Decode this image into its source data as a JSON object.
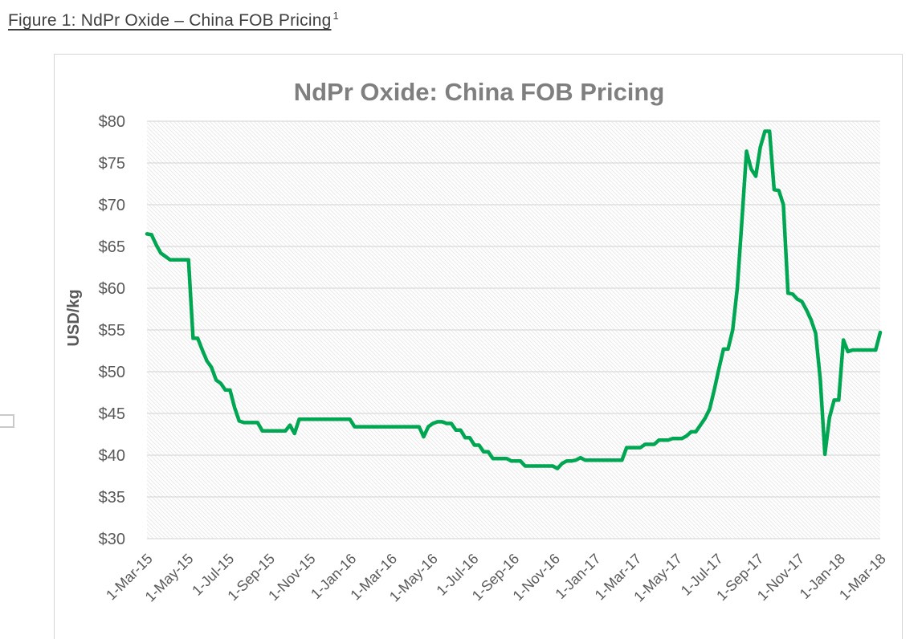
{
  "caption": {
    "text": "Figure 1: NdPr Oxide – China FOB Pricing",
    "superscript": "1"
  },
  "chart_data": {
    "type": "line",
    "title": "NdPr Oxide: China FOB Pricing",
    "xlabel": "",
    "ylabel": "USD/kg",
    "ylim": [
      30,
      80
    ],
    "ytick_step": 5,
    "ytick_labels": [
      "$30",
      "$35",
      "$40",
      "$45",
      "$50",
      "$55",
      "$60",
      "$65",
      "$70",
      "$75",
      "$80"
    ],
    "xtick_labels": [
      "1-Mar-15",
      "1-May-15",
      "1-Jul-15",
      "1-Sep-15",
      "1-Nov-15",
      "1-Jan-16",
      "1-Mar-16",
      "1-May-16",
      "1-Jul-16",
      "1-Sep-16",
      "1-Nov-16",
      "1-Jan-17",
      "1-Mar-17",
      "1-May-17",
      "1-Jul-17",
      "1-Sep-17",
      "1-Nov-17",
      "1-Jan-18",
      "1-Mar-18"
    ],
    "grid": "horizontal",
    "legend": "none",
    "plot_background": "diagonal-hatch",
    "colors": {
      "line": "#00A651",
      "title": "#7F7F7F",
      "axis_text": "#595959",
      "gridline": "#D9D9D9",
      "hatch": "#E7E7E7",
      "panel_border": "#D6D6D6"
    },
    "series": [
      {
        "name": "NdPr Oxide China FOB price (USD/kg)",
        "sampling": "weekly, 1-Mar-15 to early Mar-18",
        "values": [
          66.5,
          66.4,
          65.2,
          64.2,
          63.8,
          63.4,
          63.4,
          63.4,
          63.4,
          63.4,
          54.0,
          54.0,
          52.6,
          51.3,
          50.5,
          49.0,
          48.6,
          47.8,
          47.8,
          45.7,
          44.1,
          43.9,
          43.9,
          43.9,
          43.9,
          42.9,
          42.9,
          42.9,
          42.9,
          42.9,
          42.9,
          43.6,
          42.6,
          44.3,
          44.3,
          44.3,
          44.3,
          44.3,
          44.3,
          44.3,
          44.3,
          44.3,
          44.3,
          44.3,
          44.3,
          43.4,
          43.4,
          43.4,
          43.4,
          43.4,
          43.4,
          43.4,
          43.4,
          43.4,
          43.4,
          43.4,
          43.4,
          43.4,
          43.4,
          43.4,
          42.2,
          43.4,
          43.8,
          44.0,
          44.0,
          43.8,
          43.8,
          43.0,
          43.0,
          42.1,
          42.1,
          41.2,
          41.2,
          40.4,
          40.4,
          39.6,
          39.6,
          39.6,
          39.6,
          39.3,
          39.3,
          39.3,
          38.7,
          38.7,
          38.7,
          38.7,
          38.7,
          38.7,
          38.7,
          38.4,
          39.0,
          39.3,
          39.3,
          39.4,
          39.7,
          39.4,
          39.4,
          39.4,
          39.4,
          39.4,
          39.4,
          39.4,
          39.4,
          39.4,
          40.9,
          40.9,
          40.9,
          40.9,
          41.3,
          41.3,
          41.3,
          41.8,
          41.8,
          41.8,
          42.0,
          42.0,
          42.0,
          42.3,
          42.8,
          42.8,
          43.6,
          44.4,
          45.5,
          47.8,
          50.3,
          52.7,
          52.7,
          55.0,
          60.0,
          68.0,
          76.4,
          74.3,
          73.4,
          76.9,
          78.8,
          78.8,
          71.8,
          71.7,
          70.0,
          59.4,
          59.3,
          58.7,
          58.4,
          57.4,
          56.2,
          54.6,
          49.0,
          40.1,
          44.5,
          46.6,
          46.6,
          53.8,
          52.4,
          52.6,
          52.6,
          52.6,
          52.6,
          52.6,
          52.6,
          54.7
        ]
      }
    ]
  }
}
